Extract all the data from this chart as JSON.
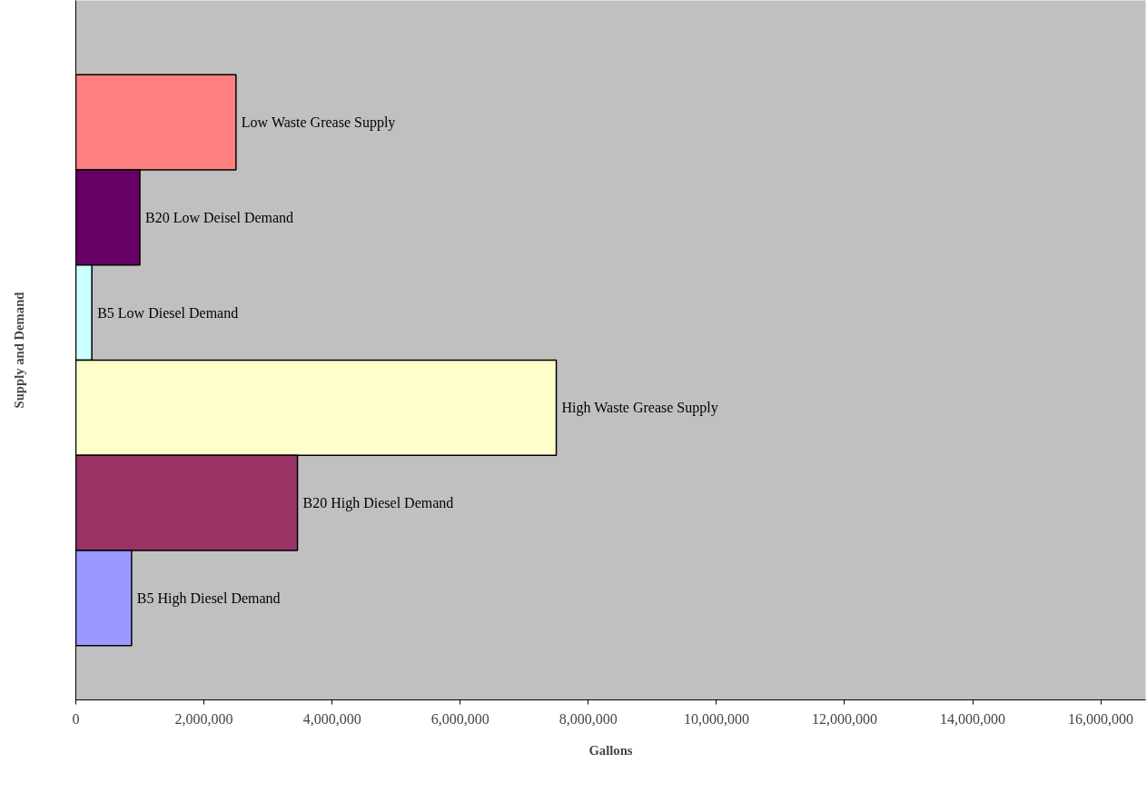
{
  "chart_data": {
    "type": "bar",
    "orientation": "horizontal",
    "xlabel": "Gallons",
    "ylabel": "Supply and Demand",
    "categories": [
      "Low Waste Grease Supply",
      "B20 Low Deisel Demand",
      "B5 Low Diesel Demand",
      "High Waste Grease Supply",
      "B20 High Diesel Demand",
      "B5 High Diesel Demand"
    ],
    "values": [
      2500000,
      1000000,
      250000,
      7500000,
      3460000,
      870000
    ],
    "colors": [
      "#ff8080",
      "#660066",
      "#ccffff",
      "#ffffcc",
      "#993366",
      "#9999ff"
    ],
    "xlim": [
      0,
      16700000
    ],
    "xticks": [
      {
        "value": 0,
        "label": "0"
      },
      {
        "value": 2000000,
        "label": "2,000,000"
      },
      {
        "value": 4000000,
        "label": "4,000,000"
      },
      {
        "value": 6000000,
        "label": "6,000,000"
      },
      {
        "value": 8000000,
        "label": "8,000,000"
      },
      {
        "value": 10000000,
        "label": "10,000,000"
      },
      {
        "value": 12000000,
        "label": "12,000,000"
      },
      {
        "value": 14000000,
        "label": "14,000,000"
      },
      {
        "value": 16000000,
        "label": "16,000,000"
      }
    ],
    "tick_labels": "x",
    "grid": false
  }
}
